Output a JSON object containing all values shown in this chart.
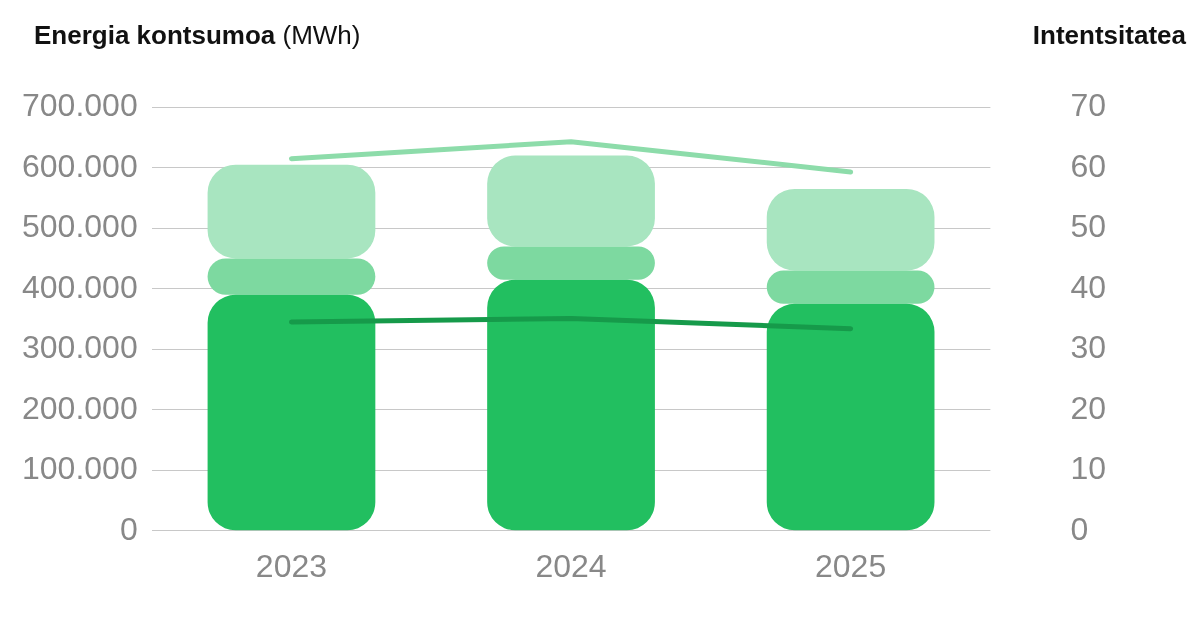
{
  "chart_data": {
    "type": "bar",
    "ylabel": "Energia kontsumoa (MWh)",
    "y2label": "Intentsitatea",
    "categories": [
      "2023",
      "2024",
      "2025"
    ],
    "stacked": true,
    "series": [
      {
        "color": "#22bf60",
        "values": [
          390000,
          415000,
          375000
        ]
      },
      {
        "color": "#7dd9a0",
        "values": [
          60000,
          55000,
          55000
        ]
      },
      {
        "color": "#a8e5c0",
        "values": [
          155000,
          150000,
          135000
        ]
      },
      {
        "type": "line",
        "axis": "y2",
        "color": "#169a4a",
        "values": [
          34.5,
          35.1,
          33.4
        ]
      },
      {
        "type": "line",
        "axis": "y2",
        "color": "#8ddcaa",
        "values": [
          61.5,
          64.3,
          59.3
        ]
      }
    ],
    "ylim": [
      0,
      700000
    ],
    "yticks": [
      {
        "value": 0,
        "label": "0"
      },
      {
        "value": 100000,
        "label": "100.000"
      },
      {
        "value": 200000,
        "label": "200.000"
      },
      {
        "value": 300000,
        "label": "300.000"
      },
      {
        "value": 400000,
        "label": "400.000"
      },
      {
        "value": 500000,
        "label": "500.000"
      },
      {
        "value": 600000,
        "label": "600.000"
      },
      {
        "value": 700000,
        "label": "700.000"
      }
    ],
    "y2lim": [
      0,
      70
    ],
    "y2ticks": [
      0,
      10,
      20,
      30,
      40,
      50,
      60,
      70
    ],
    "grid": "y",
    "legend": false,
    "marker": "none",
    "line_style": "solid"
  }
}
